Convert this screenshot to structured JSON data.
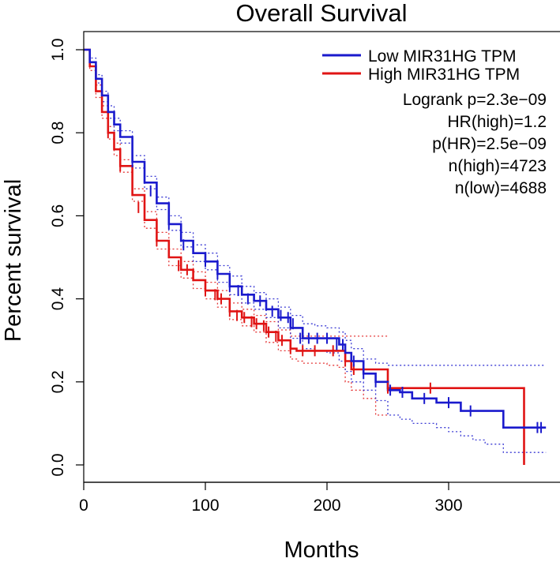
{
  "chart_data": {
    "type": "line",
    "title": "Overall Survival",
    "xlabel": "Months",
    "ylabel": "Percent survival",
    "xlim": [
      0,
      380
    ],
    "ylim": [
      0,
      1
    ],
    "x_ticks": [
      "0",
      "100",
      "200",
      "300"
    ],
    "y_ticks": [
      "0.0",
      "0.2",
      "0.4",
      "0.6",
      "0.8",
      "1.0"
    ],
    "grid": false,
    "legend_position": "top-right",
    "annotations": [
      "Logrank p=2.3e−09",
      "HR(high)=1.2",
      "p(HR)=2.5e−09",
      "n(high)=4723",
      "n(low)=4688"
    ],
    "series": [
      {
        "name": "Low MIR31HG TPM",
        "color": "#1a1acd",
        "x": [
          0,
          5,
          10,
          15,
          20,
          25,
          30,
          40,
          50,
          60,
          70,
          80,
          90,
          100,
          110,
          120,
          130,
          140,
          150,
          160,
          170,
          180,
          190,
          200,
          205,
          210,
          215,
          220,
          230,
          240,
          250,
          260,
          270,
          280,
          290,
          300,
          310,
          320,
          330,
          345,
          360,
          380
        ],
        "y": [
          1.0,
          0.97,
          0.93,
          0.89,
          0.85,
          0.82,
          0.79,
          0.73,
          0.68,
          0.63,
          0.58,
          0.54,
          0.51,
          0.49,
          0.46,
          0.43,
          0.41,
          0.395,
          0.375,
          0.355,
          0.33,
          0.305,
          0.305,
          0.305,
          0.305,
          0.29,
          0.27,
          0.25,
          0.22,
          0.2,
          0.18,
          0.175,
          0.16,
          0.16,
          0.15,
          0.15,
          0.13,
          0.13,
          0.13,
          0.09,
          0.09,
          0.09
        ],
        "ci_upper": [
          1.0,
          0.98,
          0.94,
          0.9,
          0.865,
          0.835,
          0.805,
          0.745,
          0.695,
          0.645,
          0.6,
          0.56,
          0.53,
          0.51,
          0.48,
          0.455,
          0.43,
          0.415,
          0.4,
          0.38,
          0.36,
          0.34,
          0.335,
          0.33,
          0.33,
          0.32,
          0.3,
          0.28,
          0.255,
          0.245,
          0.24,
          0.24,
          0.24,
          0.24,
          0.24,
          0.24,
          0.24,
          0.24,
          0.24,
          0.24,
          0.24
        ],
        "ci_lower": [
          1.0,
          0.96,
          0.92,
          0.875,
          0.835,
          0.805,
          0.775,
          0.715,
          0.665,
          0.615,
          0.565,
          0.525,
          0.49,
          0.47,
          0.44,
          0.41,
          0.39,
          0.375,
          0.355,
          0.33,
          0.305,
          0.28,
          0.275,
          0.27,
          0.27,
          0.25,
          0.225,
          0.2,
          0.18,
          0.155,
          0.12,
          0.11,
          0.1,
          0.1,
          0.09,
          0.08,
          0.07,
          0.06,
          0.05,
          0.03,
          0.03
        ],
        "ci_x": [
          0,
          5,
          10,
          15,
          20,
          25,
          30,
          40,
          50,
          60,
          70,
          80,
          90,
          100,
          110,
          120,
          130,
          140,
          150,
          160,
          170,
          180,
          190,
          200,
          205,
          210,
          215,
          220,
          230,
          240,
          250,
          260,
          270,
          280,
          290,
          300,
          310,
          320,
          330,
          345,
          380
        ],
        "censor_x": [
          40,
          55,
          70,
          82,
          100,
          110,
          120,
          127,
          135,
          145,
          150,
          155,
          162,
          168,
          172,
          178,
          185,
          192,
          200,
          208,
          213,
          222,
          230,
          240,
          252,
          262,
          280,
          300,
          318,
          373,
          376
        ],
        "censor_y": [
          0.73,
          0.66,
          0.58,
          0.53,
          0.49,
          0.46,
          0.43,
          0.42,
          0.4,
          0.395,
          0.385,
          0.37,
          0.36,
          0.355,
          0.34,
          0.305,
          0.305,
          0.305,
          0.305,
          0.29,
          0.29,
          0.25,
          0.22,
          0.2,
          0.18,
          0.175,
          0.16,
          0.15,
          0.13,
          0.09,
          0.09
        ]
      },
      {
        "name": "High MIR31HG TPM",
        "color": "#e01414",
        "x": [
          0,
          5,
          10,
          15,
          20,
          25,
          30,
          40,
          50,
          60,
          70,
          80,
          90,
          100,
          110,
          120,
          130,
          140,
          150,
          160,
          170,
          175,
          180,
          190,
          200,
          210,
          215,
          220,
          230,
          240,
          250,
          260,
          280,
          300,
          320,
          340,
          362,
          362
        ],
        "y": [
          1.0,
          0.96,
          0.9,
          0.85,
          0.8,
          0.76,
          0.72,
          0.65,
          0.59,
          0.54,
          0.5,
          0.47,
          0.445,
          0.42,
          0.4,
          0.37,
          0.355,
          0.34,
          0.32,
          0.3,
          0.28,
          0.275,
          0.275,
          0.275,
          0.275,
          0.275,
          0.25,
          0.23,
          0.23,
          0.23,
          0.185,
          0.185,
          0.185,
          0.185,
          0.185,
          0.185,
          0.185,
          0.0
        ],
        "ci_upper": [
          1.0,
          0.97,
          0.915,
          0.865,
          0.815,
          0.775,
          0.735,
          0.665,
          0.61,
          0.56,
          0.52,
          0.49,
          0.465,
          0.44,
          0.42,
          0.39,
          0.375,
          0.36,
          0.345,
          0.325,
          0.31,
          0.31,
          0.31,
          0.31,
          0.31,
          0.31,
          0.31,
          0.31,
          0.31,
          0.31,
          0.31,
          0.31
        ],
        "ci_lower": [
          1.0,
          0.95,
          0.885,
          0.835,
          0.785,
          0.745,
          0.705,
          0.635,
          0.57,
          0.52,
          0.48,
          0.45,
          0.425,
          0.4,
          0.38,
          0.35,
          0.335,
          0.32,
          0.295,
          0.275,
          0.255,
          0.25,
          0.245,
          0.245,
          0.24,
          0.235,
          0.2,
          0.18,
          0.16,
          0.12,
          0.12,
          0.12
        ],
        "ci_x": [
          0,
          5,
          10,
          15,
          20,
          25,
          30,
          40,
          50,
          60,
          70,
          80,
          90,
          100,
          110,
          120,
          130,
          140,
          150,
          160,
          170,
          175,
          180,
          190,
          200,
          210,
          215,
          220,
          230,
          240,
          245,
          250
        ],
        "censor_x": [
          20,
          30,
          45,
          60,
          78,
          85,
          100,
          108,
          113,
          120,
          126,
          132,
          138,
          142,
          148,
          152,
          158,
          163,
          170,
          180,
          190,
          205,
          215,
          222,
          250,
          285
        ],
        "censor_y": [
          0.8,
          0.72,
          0.62,
          0.54,
          0.48,
          0.47,
          0.42,
          0.41,
          0.4,
          0.37,
          0.36,
          0.355,
          0.345,
          0.34,
          0.335,
          0.32,
          0.31,
          0.3,
          0.28,
          0.275,
          0.275,
          0.275,
          0.25,
          0.23,
          0.185,
          0.185
        ]
      }
    ]
  }
}
